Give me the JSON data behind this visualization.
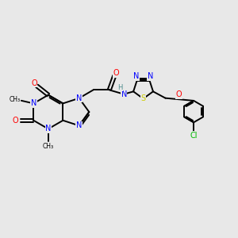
{
  "background_color": "#e8e8e8",
  "bond_color": "#000000",
  "n_color": "#0000ff",
  "o_color": "#ff0000",
  "s_color": "#cccc00",
  "cl_color": "#00bb00",
  "h_color": "#4a8a8a",
  "figsize": [
    3.0,
    3.0
  ],
  "dpi": 100,
  "xlim": [
    0,
    10
  ],
  "ylim": [
    0,
    10
  ]
}
